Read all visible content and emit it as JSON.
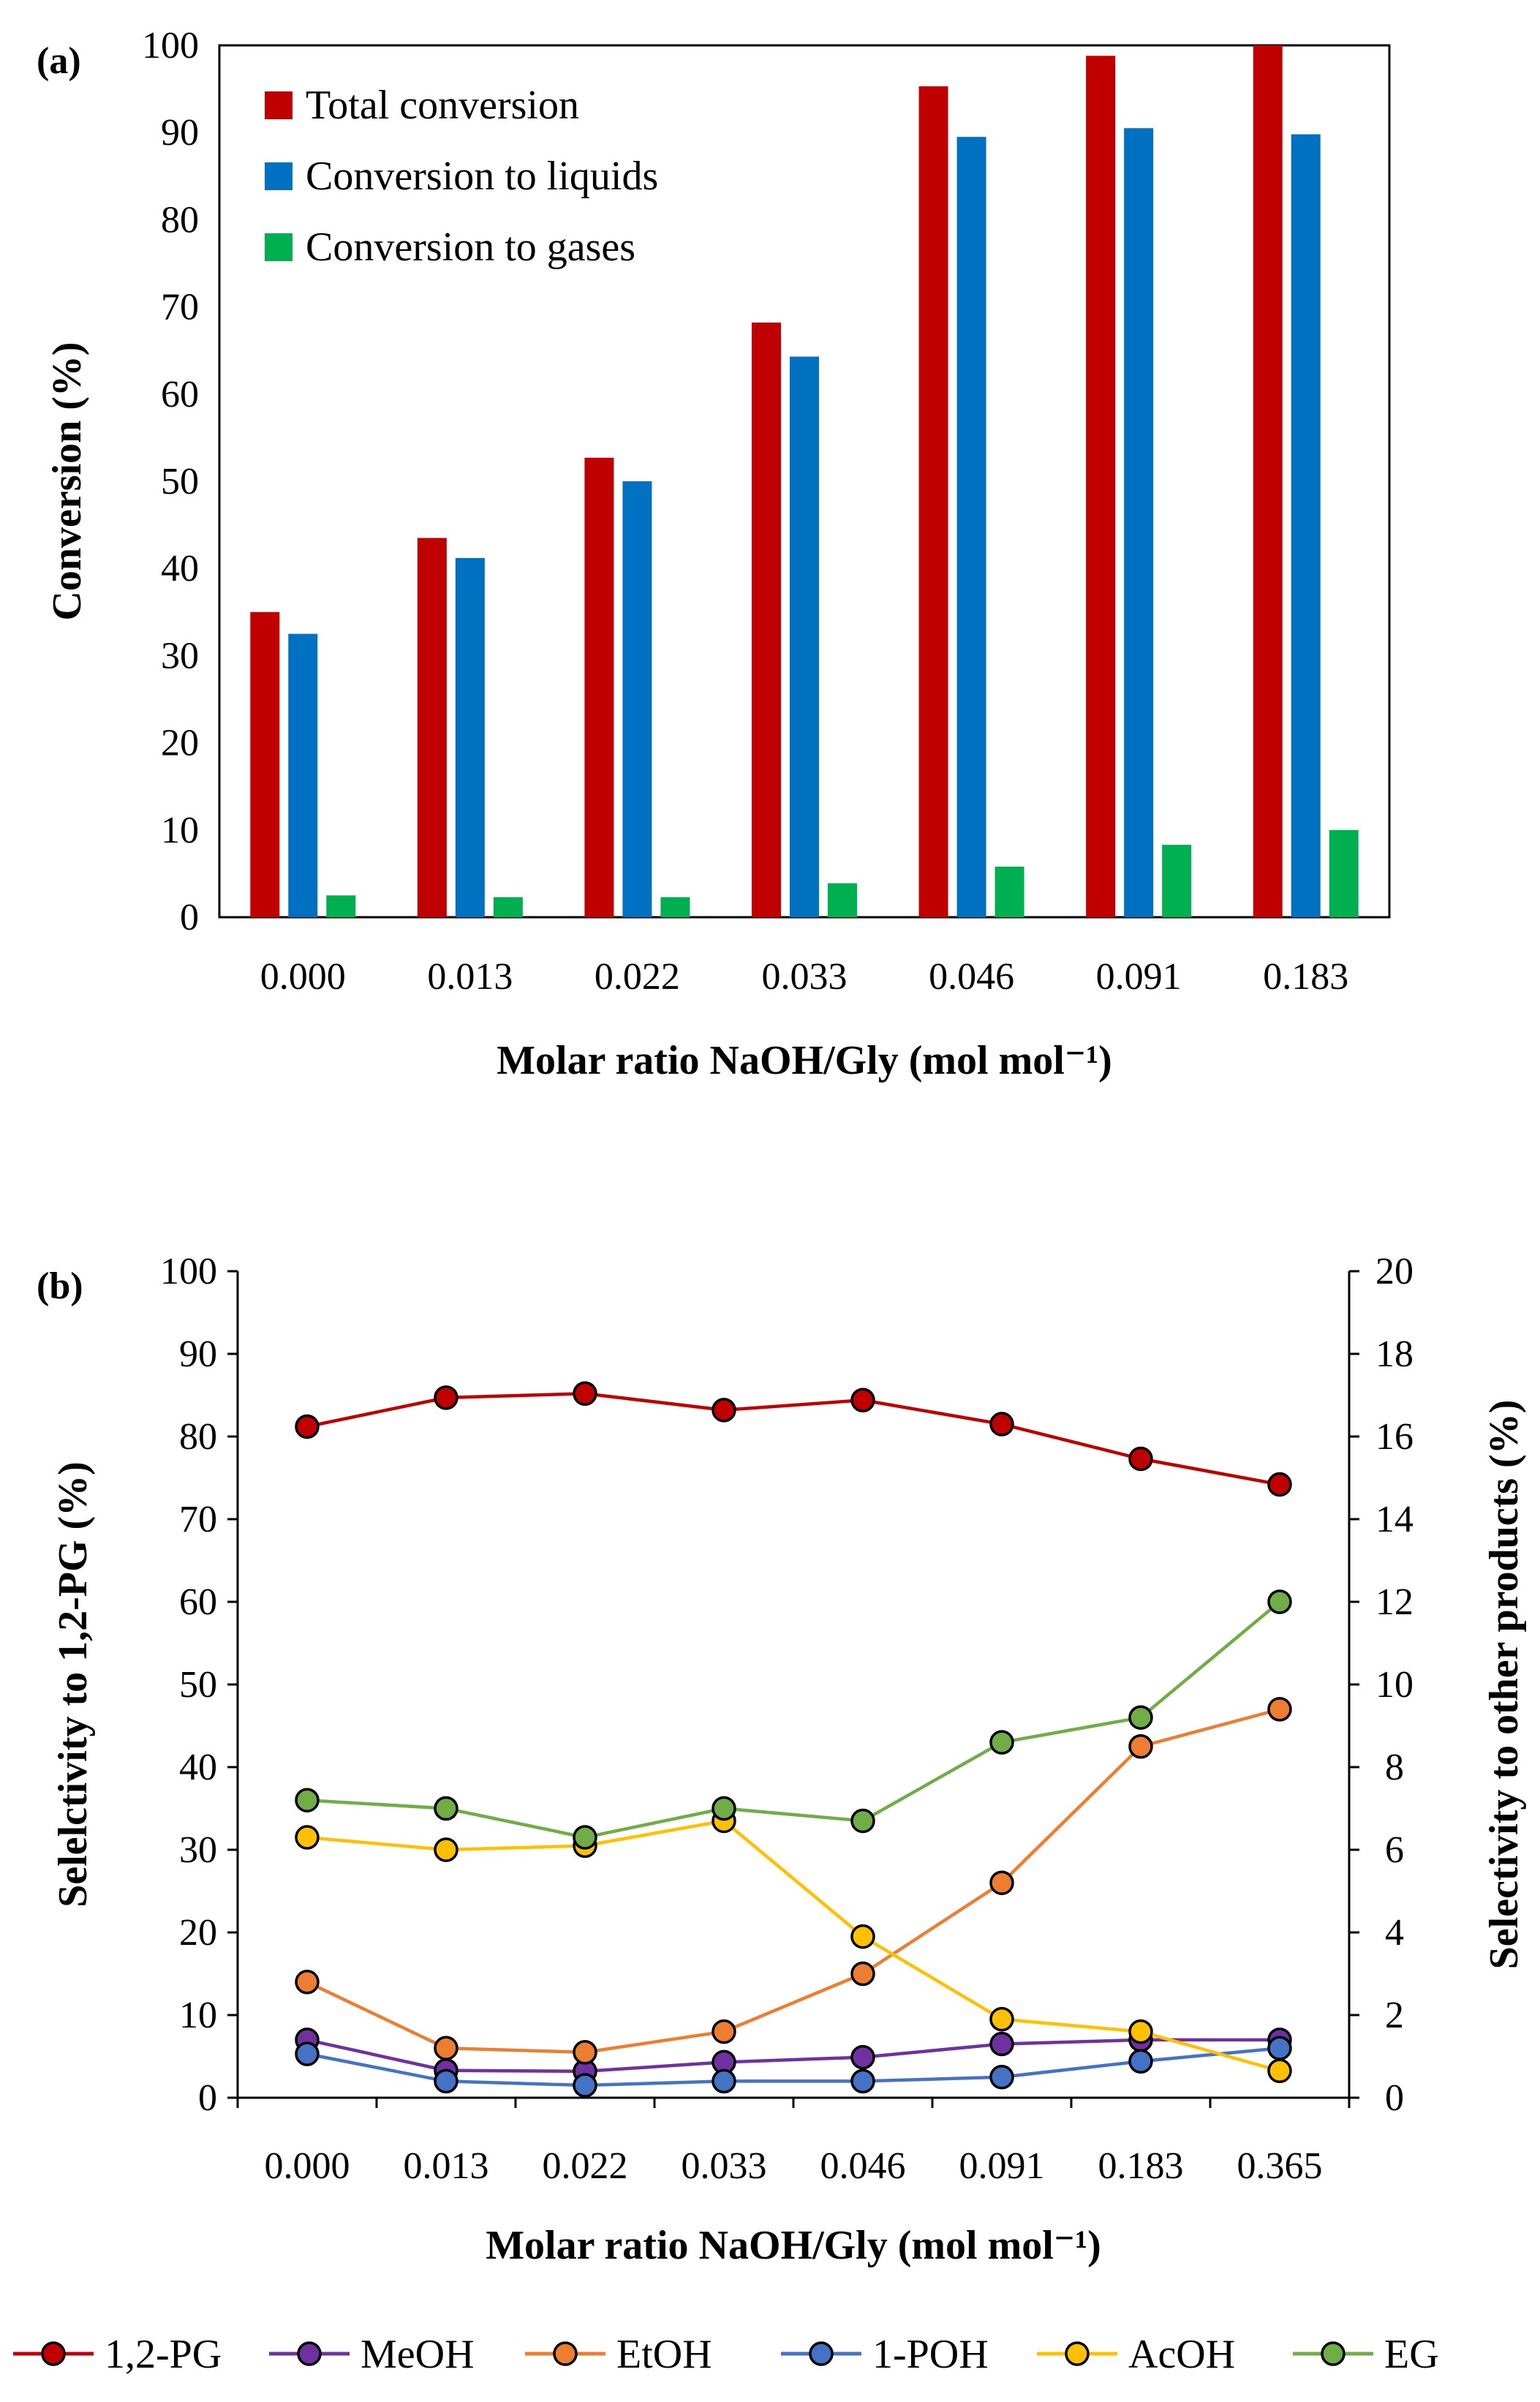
{
  "chart_data": [
    {
      "type": "bar",
      "panel_label": "(a)",
      "categories": [
        "0.000",
        "0.013",
        "0.022",
        "0.033",
        "0.046",
        "0.091",
        "0.183"
      ],
      "series": [
        {
          "name": "Total conversion",
          "color": "#C00000",
          "values": [
            35.0,
            43.5,
            52.7,
            68.2,
            95.3,
            98.8,
            100.0
          ]
        },
        {
          "name": "Conversion to liquids",
          "color": "#0070C0",
          "values": [
            32.5,
            41.2,
            50.0,
            64.3,
            89.5,
            90.5,
            89.8
          ]
        },
        {
          "name": "Conversion to gases",
          "color": "#00B050",
          "values": [
            2.5,
            2.3,
            2.3,
            3.9,
            5.8,
            8.3,
            10.0
          ]
        }
      ],
      "xlabel": "Molar ratio NaOH/Gly (mol mol⁻¹)",
      "ylabel": "Conversion (%)",
      "ylim": [
        0,
        100
      ],
      "yticks": [
        "0",
        "10",
        "20",
        "30",
        "40",
        "50",
        "60",
        "70",
        "80",
        "90",
        "100"
      ],
      "legend_position": "top-left"
    },
    {
      "type": "line",
      "panel_label": "(b)",
      "categories": [
        "0.000",
        "0.013",
        "0.022",
        "0.033",
        "0.046",
        "0.091",
        "0.183",
        "0.365"
      ],
      "series": [
        {
          "name": "1,2-PG",
          "color": "#C00000",
          "axis": "left",
          "values": [
            81.2,
            84.7,
            85.2,
            83.2,
            84.4,
            81.5,
            77.3,
            74.2
          ]
        },
        {
          "name": "MeOH",
          "color": "#7030A0",
          "axis": "left",
          "values": [
            7.0,
            3.3,
            3.2,
            4.3,
            4.9,
            6.5,
            7.0,
            7.0
          ]
        },
        {
          "name": "EtOH",
          "color": "#ED7D31",
          "axis": "right",
          "values": [
            2.8,
            1.2,
            1.1,
            1.6,
            3.0,
            5.2,
            8.5,
            9.4
          ]
        },
        {
          "name": "1-POH",
          "color": "#4472C4",
          "axis": "left",
          "values": [
            5.3,
            2.0,
            1.5,
            2.0,
            2.0,
            2.5,
            4.4,
            6.0
          ]
        },
        {
          "name": "AcOH",
          "color": "#FFC000",
          "axis": "right",
          "values": [
            6.3,
            6.0,
            6.1,
            6.7,
            3.9,
            1.9,
            1.6,
            0.65
          ]
        },
        {
          "name": "EG",
          "color": "#70AD47",
          "axis": "right",
          "values": [
            7.2,
            7.0,
            6.3,
            7.0,
            6.7,
            8.6,
            9.2,
            12.0
          ]
        }
      ],
      "xlabel": "Molar ratio NaOH/Gly (mol mol⁻¹)",
      "ylabel": "Selelctivity to 1,2-PG (%)",
      "y2label": "Selectivity to other products (%)",
      "ylim": [
        0,
        100
      ],
      "y2lim": [
        0,
        20
      ],
      "yticks": [
        "0",
        "10",
        "20",
        "30",
        "40",
        "50",
        "60",
        "70",
        "80",
        "90",
        "100"
      ],
      "y2ticks": [
        "0",
        "2",
        "4",
        "6",
        "8",
        "10",
        "12",
        "14",
        "16",
        "18",
        "20"
      ],
      "legend_position": "bottom"
    }
  ]
}
